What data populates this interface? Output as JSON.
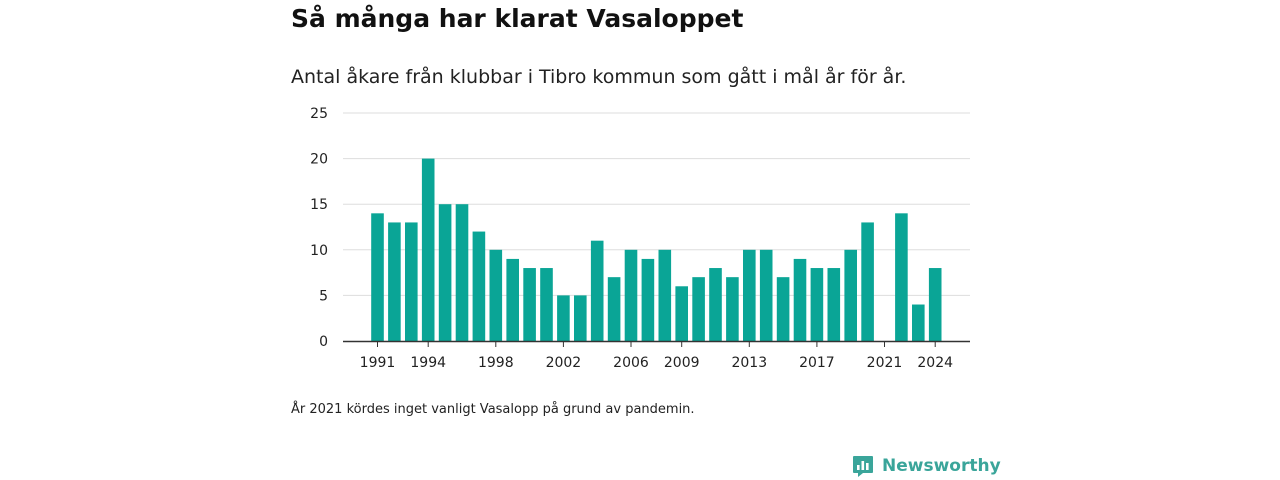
{
  "title": "Så många har klarat Vasaloppet",
  "subtitle": "Antal åkare från klubbar i Tibro kommun som gått i mål år för år.",
  "footnote": "År 2021 kördes inget vanligt Vasalopp på grund av pandemin.",
  "brand": {
    "name": "Newsworthy",
    "icon": "newsworthy-logo-icon",
    "color": "#3aa59a"
  },
  "chart_data": {
    "type": "bar",
    "bar_color": "#0aa596",
    "categories": [
      1991,
      1992,
      1993,
      1994,
      1995,
      1996,
      1997,
      1998,
      1999,
      2000,
      2001,
      2002,
      2003,
      2004,
      2005,
      2006,
      2007,
      2008,
      2009,
      2010,
      2011,
      2012,
      2013,
      2014,
      2015,
      2016,
      2017,
      2018,
      2019,
      2020,
      2021,
      2022,
      2023,
      2024
    ],
    "values": [
      14,
      13,
      13,
      20,
      15,
      15,
      12,
      10,
      9,
      8,
      8,
      5,
      5,
      11,
      7,
      10,
      9,
      10,
      6,
      7,
      8,
      7,
      10,
      10,
      7,
      9,
      8,
      8,
      10,
      13,
      0,
      14,
      4,
      8
    ],
    "x_tick_labels": [
      "1991",
      "1994",
      "1998",
      "2002",
      "2006",
      "2009",
      "2013",
      "2017",
      "2021",
      "2024"
    ],
    "y_ticks": [
      "0",
      "5",
      "10",
      "15",
      "20",
      "25"
    ],
    "ylim": [
      0,
      25
    ],
    "grid": true
  }
}
